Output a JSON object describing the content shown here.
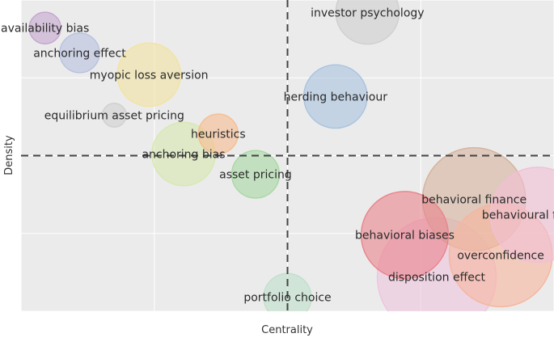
{
  "chart_data": {
    "type": "scatter",
    "xlabel": "Centrality",
    "ylabel": "Density",
    "xlim": [
      0,
      10
    ],
    "ylim": [
      0,
      10
    ],
    "grid": true,
    "legend": "none",
    "divider_lines": {
      "x": 5,
      "y": 5
    },
    "points": [
      {
        "label": "investor psychology",
        "x": 6.5,
        "y": 9.6,
        "size": 8,
        "color": "#cfcfcf"
      },
      {
        "label": "availability bias",
        "x": 0.45,
        "y": 9.1,
        "size": 4,
        "color": "#c4a6cf"
      },
      {
        "label": "anchoring effect",
        "x": 1.1,
        "y": 8.3,
        "size": 5,
        "color": "#b8c2e0"
      },
      {
        "label": "myopic loss aversion",
        "x": 2.4,
        "y": 7.6,
        "size": 8,
        "color": "#f2e3a1"
      },
      {
        "label": "herding behaviour",
        "x": 5.9,
        "y": 6.9,
        "size": 8,
        "color": "#a9c3df"
      },
      {
        "label": "equilibrium asset pricing",
        "x": 1.75,
        "y": 6.3,
        "size": 3,
        "color": "#d0d0d0"
      },
      {
        "label": "heuristics",
        "x": 3.7,
        "y": 5.7,
        "size": 5,
        "color": "#f6bd8f"
      },
      {
        "label": "anchoring bias",
        "x": 3.05,
        "y": 5.05,
        "size": 8,
        "color": "#d7e8b0"
      },
      {
        "label": "asset pricing",
        "x": 4.4,
        "y": 4.4,
        "size": 6,
        "color": "#a7d8a3"
      },
      {
        "label": "behavioral finance",
        "x": 8.5,
        "y": 3.6,
        "size": 13,
        "color": "#d5b29c"
      },
      {
        "label": "behavioural finance",
        "x": 9.7,
        "y": 3.1,
        "size": 12,
        "color": "#f1bfd6"
      },
      {
        "label": "behavioral biases",
        "x": 7.2,
        "y": 2.45,
        "size": 11,
        "color": "#e9848c"
      },
      {
        "label": "overconfidence",
        "x": 9.0,
        "y": 1.8,
        "size": 13,
        "color": "#f6b59f"
      },
      {
        "label": "disposition effect",
        "x": 7.8,
        "y": 1.1,
        "size": 15,
        "color": "#efc4dd"
      },
      {
        "label": "portfolio choice",
        "x": 5.0,
        "y": 0.45,
        "size": 6,
        "color": "#bfe0cc"
      }
    ]
  }
}
